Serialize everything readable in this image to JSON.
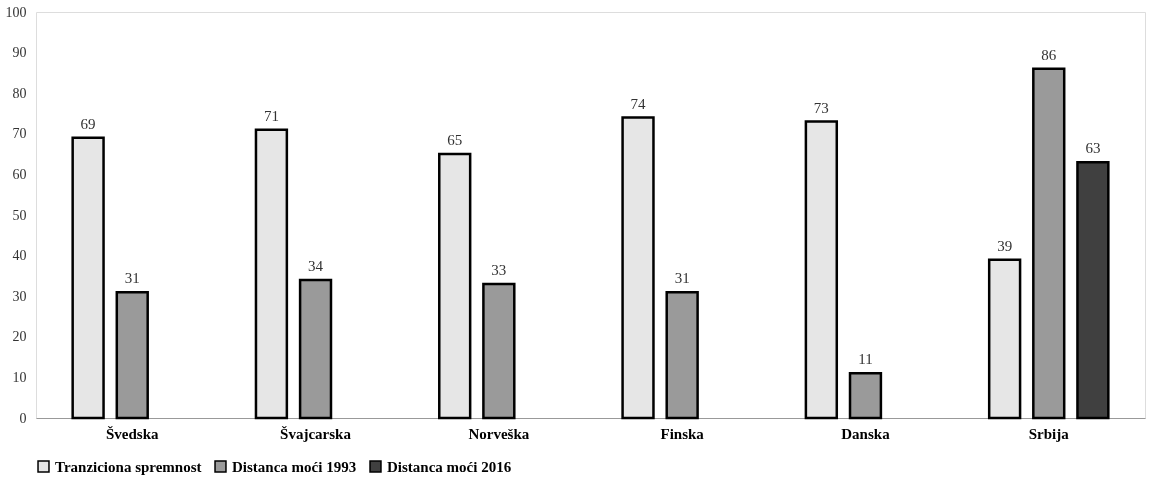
{
  "chart_data": {
    "type": "bar",
    "categories": [
      "Švedska",
      "Švajcarska",
      "Norveška",
      "Finska",
      "Danska",
      "Srbija"
    ],
    "series": [
      {
        "name": "Tranziciona spremnost",
        "color": "#e6e6e6",
        "values": [
          69,
          71,
          65,
          74,
          73,
          39
        ]
      },
      {
        "name": "Distanca moći 1993",
        "color": "#9a9a9a",
        "values": [
          31,
          34,
          33,
          31,
          11,
          86
        ]
      },
      {
        "name": "Distanca moći 2016",
        "color": "#404040",
        "values": [
          null,
          null,
          null,
          null,
          null,
          63
        ]
      }
    ],
    "ylim": [
      0,
      100
    ],
    "yticks": [
      0,
      10,
      20,
      30,
      40,
      50,
      60,
      70,
      80,
      90,
      100
    ],
    "grid": false,
    "legend": "bottom",
    "data_labels": true
  }
}
